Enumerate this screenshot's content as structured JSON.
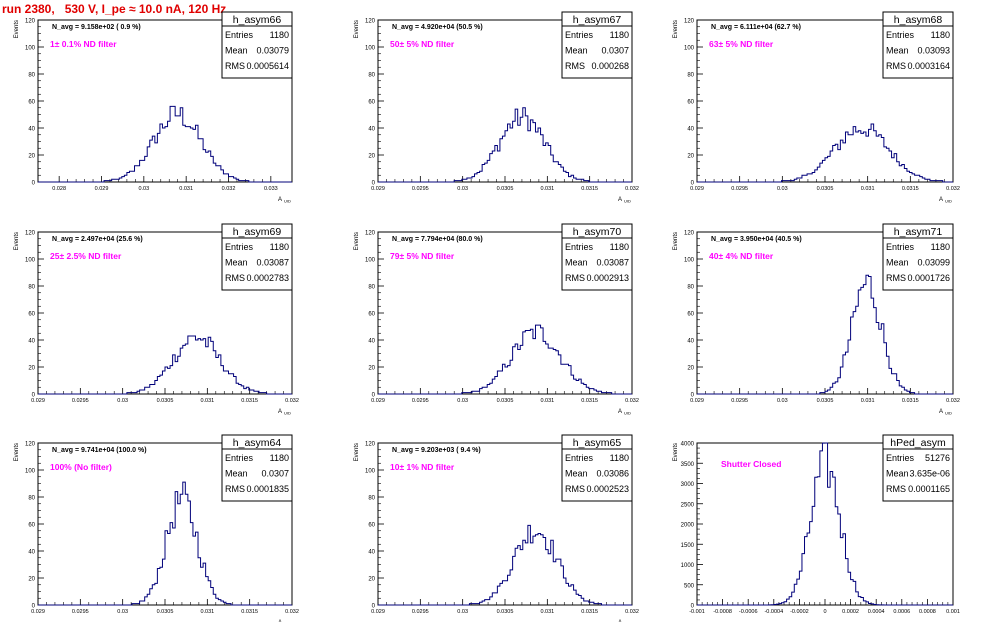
{
  "page_title": "run 2380,   530 V, I_pe ≈ 10.0 nA, 120 Hz",
  "chart_data": [
    {
      "type": "histogram",
      "hist_name": "h_asym66",
      "stats": {
        "Entries": "1180",
        "Mean": "0.03079",
        "RMS": "0.0005614"
      },
      "navg_text": "N_avg = 9.158e+02 ( 0.9 %)",
      "filter_text": "1± 0.1% ND filter",
      "ylabel": "Events",
      "xlabel": "A_UID",
      "ylim": [
        0,
        120
      ],
      "yticks": [
        "0",
        "20",
        "40",
        "60",
        "80",
        "100",
        "120"
      ],
      "xlim": [
        0.0275,
        0.0335
      ],
      "xticks": [
        {
          "v": 0.028,
          "t": "0.028"
        },
        {
          "v": 0.029,
          "t": "0.029"
        },
        {
          "v": 0.03,
          "t": "0.03"
        },
        {
          "v": 0.031,
          "t": "0.031"
        },
        {
          "v": 0.032,
          "t": "0.032"
        },
        {
          "v": 0.033,
          "t": "0.033"
        }
      ],
      "peak": {
        "center": 0.03079,
        "sigma": 0.0005614,
        "height": 50
      }
    },
    {
      "type": "histogram",
      "hist_name": "h_asym67",
      "stats": {
        "Entries": "1180",
        "Mean": "0.0307",
        "RMS": "0.000268"
      },
      "navg_text": "N_avg = 4.920e+04 (50.5 %)",
      "filter_text": "50± 5% ND filter",
      "ylabel": "Events",
      "xlabel": "A_UID",
      "ylim": [
        0,
        120
      ],
      "yticks": [
        "0",
        "20",
        "40",
        "60",
        "80",
        "100",
        "120"
      ],
      "xlim": [
        0.029,
        0.032
      ],
      "xticks": [
        {
          "v": 0.029,
          "t": "0.029"
        },
        {
          "v": 0.0295,
          "t": "0.0295"
        },
        {
          "v": 0.03,
          "t": "0.03"
        },
        {
          "v": 0.0305,
          "t": "0.0305"
        },
        {
          "v": 0.031,
          "t": "0.031"
        },
        {
          "v": 0.0315,
          "t": "0.0315"
        },
        {
          "v": 0.032,
          "t": "0.032"
        }
      ],
      "peak": {
        "center": 0.0307,
        "sigma": 0.000268,
        "height": 48
      }
    },
    {
      "type": "histogram",
      "hist_name": "h_asym68",
      "stats": {
        "Entries": "1180",
        "Mean": "0.03093",
        "RMS": "0.0003164"
      },
      "navg_text": "N_avg = 6.111e+04 (62.7 %)",
      "filter_text": "63± 5% ND filter",
      "ylabel": "Events",
      "xlabel": "A_UID",
      "ylim": [
        0,
        120
      ],
      "yticks": [
        "0",
        "20",
        "40",
        "60",
        "80",
        "100",
        "120"
      ],
      "xlim": [
        0.029,
        0.032
      ],
      "xticks": [
        {
          "v": 0.029,
          "t": "0.029"
        },
        {
          "v": 0.0295,
          "t": "0.0295"
        },
        {
          "v": 0.03,
          "t": "0.03"
        },
        {
          "v": 0.0305,
          "t": "0.0305"
        },
        {
          "v": 0.031,
          "t": "0.031"
        },
        {
          "v": 0.0315,
          "t": "0.0315"
        },
        {
          "v": 0.032,
          "t": "0.032"
        }
      ],
      "peak": {
        "center": 0.03093,
        "sigma": 0.0003164,
        "height": 40
      }
    },
    {
      "type": "histogram",
      "hist_name": "h_asym69",
      "stats": {
        "Entries": "1180",
        "Mean": "0.03087",
        "RMS": "0.0002783"
      },
      "navg_text": "N_avg = 2.497e+04 (25.6 %)",
      "filter_text": "25± 2.5% ND filter",
      "ylabel": "Events",
      "xlabel": "A_UID",
      "ylim": [
        0,
        120
      ],
      "yticks": [
        "0",
        "20",
        "40",
        "60",
        "80",
        "100",
        "120"
      ],
      "xlim": [
        0.029,
        0.032
      ],
      "xticks": [
        {
          "v": 0.029,
          "t": "0.029"
        },
        {
          "v": 0.0295,
          "t": "0.0295"
        },
        {
          "v": 0.03,
          "t": "0.03"
        },
        {
          "v": 0.0305,
          "t": "0.0305"
        },
        {
          "v": 0.031,
          "t": "0.031"
        },
        {
          "v": 0.0315,
          "t": "0.0315"
        },
        {
          "v": 0.032,
          "t": "0.032"
        }
      ],
      "peak": {
        "center": 0.03087,
        "sigma": 0.0002783,
        "height": 42
      }
    },
    {
      "type": "histogram",
      "hist_name": "h_asym70",
      "stats": {
        "Entries": "1180",
        "Mean": "0.03087",
        "RMS": "0.0002913"
      },
      "navg_text": "N_avg = 7.794e+04 (80.0 %)",
      "filter_text": "79± 5% ND filter",
      "ylabel": "Events",
      "xlabel": "A_UID",
      "ylim": [
        0,
        120
      ],
      "yticks": [
        "0",
        "20",
        "40",
        "60",
        "80",
        "100",
        "120"
      ],
      "xlim": [
        0.029,
        0.032
      ],
      "xticks": [
        {
          "v": 0.029,
          "t": "0.029"
        },
        {
          "v": 0.0295,
          "t": "0.0295"
        },
        {
          "v": 0.03,
          "t": "0.03"
        },
        {
          "v": 0.0305,
          "t": "0.0305"
        },
        {
          "v": 0.031,
          "t": "0.031"
        },
        {
          "v": 0.0315,
          "t": "0.0315"
        },
        {
          "v": 0.032,
          "t": "0.032"
        }
      ],
      "peak": {
        "center": 0.03087,
        "sigma": 0.0002913,
        "height": 46
      }
    },
    {
      "type": "histogram",
      "hist_name": "h_asym71",
      "stats": {
        "Entries": "1180",
        "Mean": "0.03099",
        "RMS": "0.0001726"
      },
      "navg_text": "N_avg = 3.950e+04 (40.5 %)",
      "filter_text": "40± 4% ND filter",
      "ylabel": "Events",
      "xlabel": "A_UID",
      "ylim": [
        0,
        120
      ],
      "yticks": [
        "0",
        "20",
        "40",
        "60",
        "80",
        "100",
        "120"
      ],
      "xlim": [
        0.029,
        0.032
      ],
      "xticks": [
        {
          "v": 0.029,
          "t": "0.029"
        },
        {
          "v": 0.0295,
          "t": "0.0295"
        },
        {
          "v": 0.03,
          "t": "0.03"
        },
        {
          "v": 0.0305,
          "t": "0.0305"
        },
        {
          "v": 0.031,
          "t": "0.031"
        },
        {
          "v": 0.0315,
          "t": "0.0315"
        },
        {
          "v": 0.032,
          "t": "0.032"
        }
      ],
      "peak": {
        "center": 0.03099,
        "sigma": 0.0001726,
        "height": 82
      }
    },
    {
      "type": "histogram",
      "hist_name": "h_asym64",
      "stats": {
        "Entries": "1180",
        "Mean": "0.0307",
        "RMS": "0.0001835"
      },
      "navg_text": "N_avg = 9.741e+04 (100.0 %)",
      "filter_text": "100% (No filter)",
      "ylabel": "Events",
      "xlabel": "A_UID",
      "ylim": [
        0,
        120
      ],
      "yticks": [
        "0",
        "20",
        "40",
        "60",
        "80",
        "100",
        "120"
      ],
      "xlim": [
        0.029,
        0.032
      ],
      "xticks": [
        {
          "v": 0.029,
          "t": "0.029"
        },
        {
          "v": 0.0295,
          "t": "0.0295"
        },
        {
          "v": 0.03,
          "t": "0.03"
        },
        {
          "v": 0.0305,
          "t": "0.0305"
        },
        {
          "v": 0.031,
          "t": "0.031"
        },
        {
          "v": 0.0315,
          "t": "0.0315"
        },
        {
          "v": 0.032,
          "t": "0.032"
        }
      ],
      "peak": {
        "center": 0.0307,
        "sigma": 0.0001835,
        "height": 78
      }
    },
    {
      "type": "histogram",
      "hist_name": "h_asym65",
      "stats": {
        "Entries": "1180",
        "Mean": "0.03086",
        "RMS": "0.0002523"
      },
      "navg_text": "N_avg = 9.203e+03 ( 9.4 %)",
      "filter_text": "10± 1% ND filter",
      "ylabel": "Events",
      "xlabel": "A_UID",
      "ylim": [
        0,
        120
      ],
      "yticks": [
        "0",
        "20",
        "40",
        "60",
        "80",
        "100",
        "120"
      ],
      "xlim": [
        0.029,
        0.032
      ],
      "xticks": [
        {
          "v": 0.029,
          "t": "0.029"
        },
        {
          "v": 0.0295,
          "t": "0.0295"
        },
        {
          "v": 0.03,
          "t": "0.03"
        },
        {
          "v": 0.0305,
          "t": "0.0305"
        },
        {
          "v": 0.031,
          "t": "0.031"
        },
        {
          "v": 0.0315,
          "t": "0.0315"
        },
        {
          "v": 0.032,
          "t": "0.032"
        }
      ],
      "peak": {
        "center": 0.03086,
        "sigma": 0.0002523,
        "height": 56
      }
    },
    {
      "type": "histogram",
      "hist_name": "hPed_asym",
      "stats": {
        "Entries": "51276",
        "Mean": "3.635e-06",
        "RMS": "0.0001165"
      },
      "navg_text": "",
      "filter_text": "Shutter Closed",
      "ylabel": "Events",
      "xlabel": "",
      "ylim": [
        0,
        4000
      ],
      "yticks": [
        "0",
        "500",
        "1000",
        "1500",
        "2000",
        "2500",
        "3000",
        "3500",
        "4000"
      ],
      "xlim": [
        -0.001,
        0.001
      ],
      "xticks": [
        {
          "v": -0.001,
          "t": "-0.001"
        },
        {
          "v": -0.0008,
          "t": "-0.0008"
        },
        {
          "v": -0.0006,
          "t": "-0.0006"
        },
        {
          "v": -0.0004,
          "t": "-0.0004"
        },
        {
          "v": -0.0002,
          "t": "-0.0002"
        },
        {
          "v": 0,
          "t": "0"
        },
        {
          "v": 0.0002,
          "t": "0.0002"
        },
        {
          "v": 0.0004,
          "t": "0.0004"
        },
        {
          "v": 0.0006,
          "t": "0.0006"
        },
        {
          "v": 0.0008,
          "t": "0.0008"
        },
        {
          "v": 0.001,
          "t": "0.001"
        }
      ],
      "peak": {
        "center": 3.635e-06,
        "sigma": 0.0001165,
        "height": 3450
      }
    }
  ],
  "stats_labels": {
    "entries": "Entries",
    "mean": "Mean",
    "rms": "RMS"
  },
  "colors": {
    "hist": "#00007a",
    "title": "#e00000",
    "filter": "#ff00ff",
    "axis": "#000000"
  }
}
